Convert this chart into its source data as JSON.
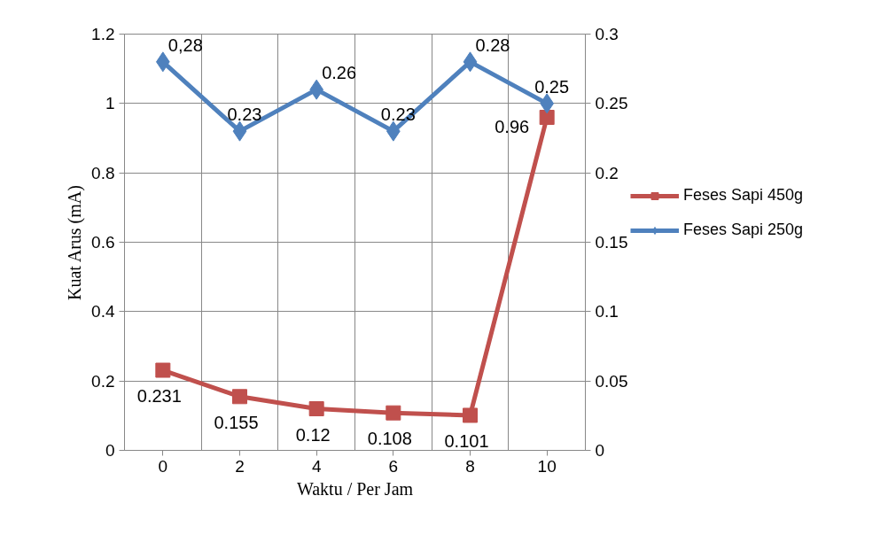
{
  "chart_data": {
    "type": "line",
    "xlabel": "Waktu / Per Jam",
    "ylabel": "Kuat Arus (mA)",
    "categories": [
      "0",
      "2",
      "4",
      "6",
      "8",
      "10"
    ],
    "ylim": [
      0,
      1.2
    ],
    "yticks": [
      0,
      0.2,
      0.4,
      0.6,
      0.8,
      1,
      1.2
    ],
    "y2lim": [
      0,
      0.3
    ],
    "y2ticks": [
      0,
      0.05,
      0.1,
      0.15,
      0.2,
      0.25,
      0.3
    ],
    "grid": true,
    "legend": "right",
    "line_style": "solid",
    "series": [
      {
        "name": "Feses Sapi 450g",
        "color": "#c0504d",
        "marker": "square",
        "values": [
          0.231,
          0.155,
          0.12,
          0.108,
          0.101,
          0.96
        ],
        "value_labels": [
          "0.231",
          "0.155",
          "0.12",
          "0.108",
          "0.101",
          "0.96"
        ]
      },
      {
        "name": "Feses Sapi 250g",
        "color": "#4f81bd",
        "marker": "diamond",
        "axis": "y2",
        "values": [
          0.28,
          0.23,
          0.26,
          0.23,
          0.28,
          0.25
        ],
        "value_labels": [
          "0,28",
          "0.23",
          "0.26",
          "0.23",
          "0.28",
          "0.25"
        ]
      }
    ]
  }
}
